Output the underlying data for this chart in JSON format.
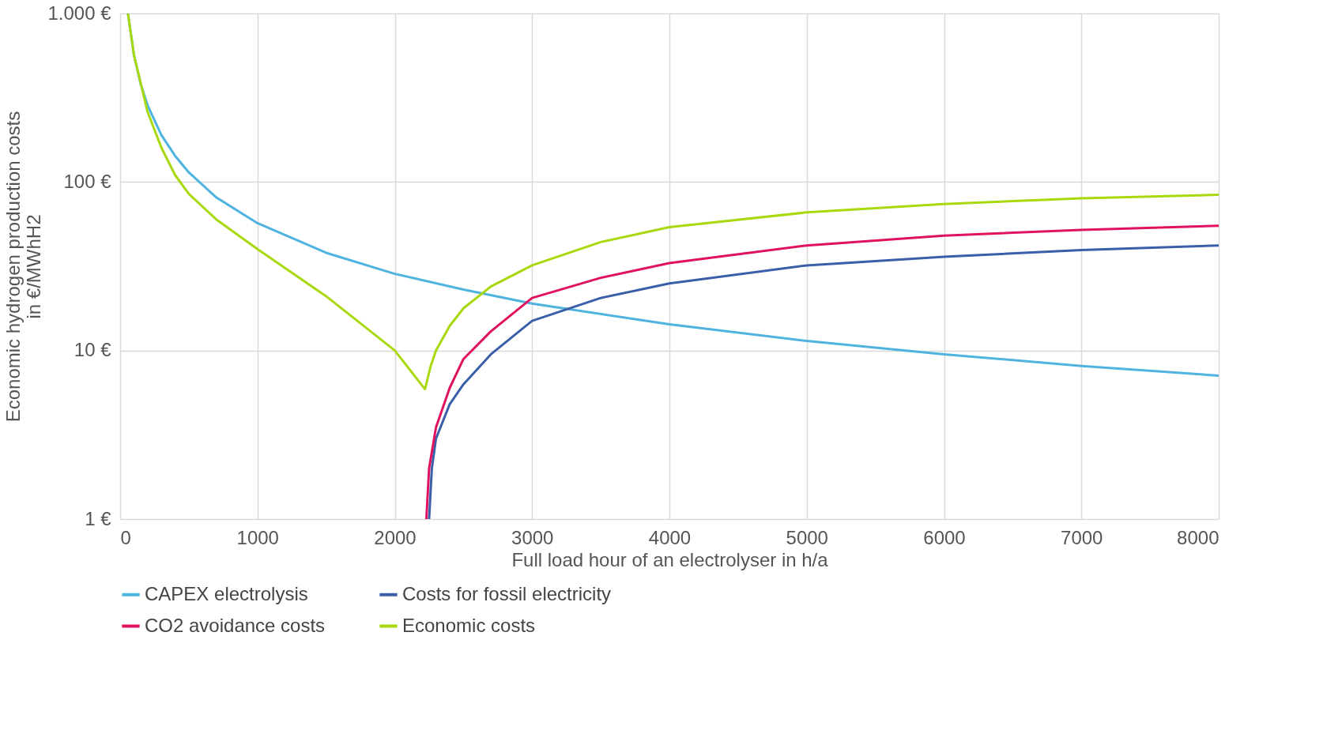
{
  "chart_data": {
    "type": "line",
    "xlabel": "Full load hour of an electrolyser in h/a",
    "ylabel": "Economic hydrogen production costs\nin  €/MWhH2",
    "log": "y",
    "grid": true,
    "legend": "bottom",
    "line_style": "solid",
    "marker": "none",
    "xlim": [
      0,
      8000
    ],
    "xticks": [
      0,
      1000,
      2000,
      3000,
      4000,
      5000,
      6000,
      7000,
      8000
    ],
    "ylim": [
      1,
      1000
    ],
    "yticks": [
      {
        "value": 1,
        "label": "1 €"
      },
      {
        "value": 10,
        "label": "10 €"
      },
      {
        "value": 100,
        "label": "100 €"
      },
      {
        "value": 1000,
        "label": "1.000 €"
      }
    ],
    "series": [
      {
        "name": "CAPEX electrolysis",
        "color": "#4fb3e0",
        "x": [
          57,
          100,
          150,
          200,
          300,
          400,
          500,
          700,
          1000,
          1500,
          2000,
          2500,
          3000,
          4000,
          5000,
          6000,
          7000,
          8000
        ],
        "values": [
          1000,
          570,
          380,
          285,
          190,
          143,
          114,
          81,
          57,
          38,
          28.5,
          23,
          19,
          14.3,
          11.4,
          9.5,
          8.1,
          7.1
        ]
      },
      {
        "name": "Costs for fossil electricity",
        "color": "#3a5fa8",
        "x": [
          2250,
          2270,
          2300,
          2400,
          2500,
          2700,
          3000,
          3500,
          4000,
          5000,
          6000,
          7000,
          8000
        ],
        "values": [
          1,
          2,
          3,
          4.8,
          6.3,
          9.5,
          15,
          20.5,
          25,
          32,
          36,
          39.5,
          42
        ]
      },
      {
        "name": "CO2 avoidance costs",
        "color": "#e0125f",
        "x": [
          2230,
          2250,
          2300,
          2400,
          2500,
          2700,
          3000,
          3500,
          4000,
          5000,
          6000,
          7000,
          8000
        ],
        "values": [
          1,
          2,
          3.5,
          6,
          8.9,
          13,
          20.5,
          27,
          33,
          42,
          48,
          52,
          55
        ]
      },
      {
        "name": "Economic costs",
        "color": "#a8d90f",
        "x": [
          57,
          100,
          200,
          300,
          400,
          500,
          700,
          1000,
          1500,
          2000,
          2220,
          2260,
          2300,
          2400,
          2500,
          2700,
          3000,
          3500,
          4000,
          5000,
          6000,
          7000,
          8000
        ],
        "values": [
          1000,
          570,
          260,
          160,
          110,
          85,
          60,
          40,
          21,
          10,
          5.9,
          8,
          10,
          14,
          17.8,
          24,
          32,
          44,
          54,
          66,
          74,
          80,
          84
        ]
      }
    ]
  }
}
